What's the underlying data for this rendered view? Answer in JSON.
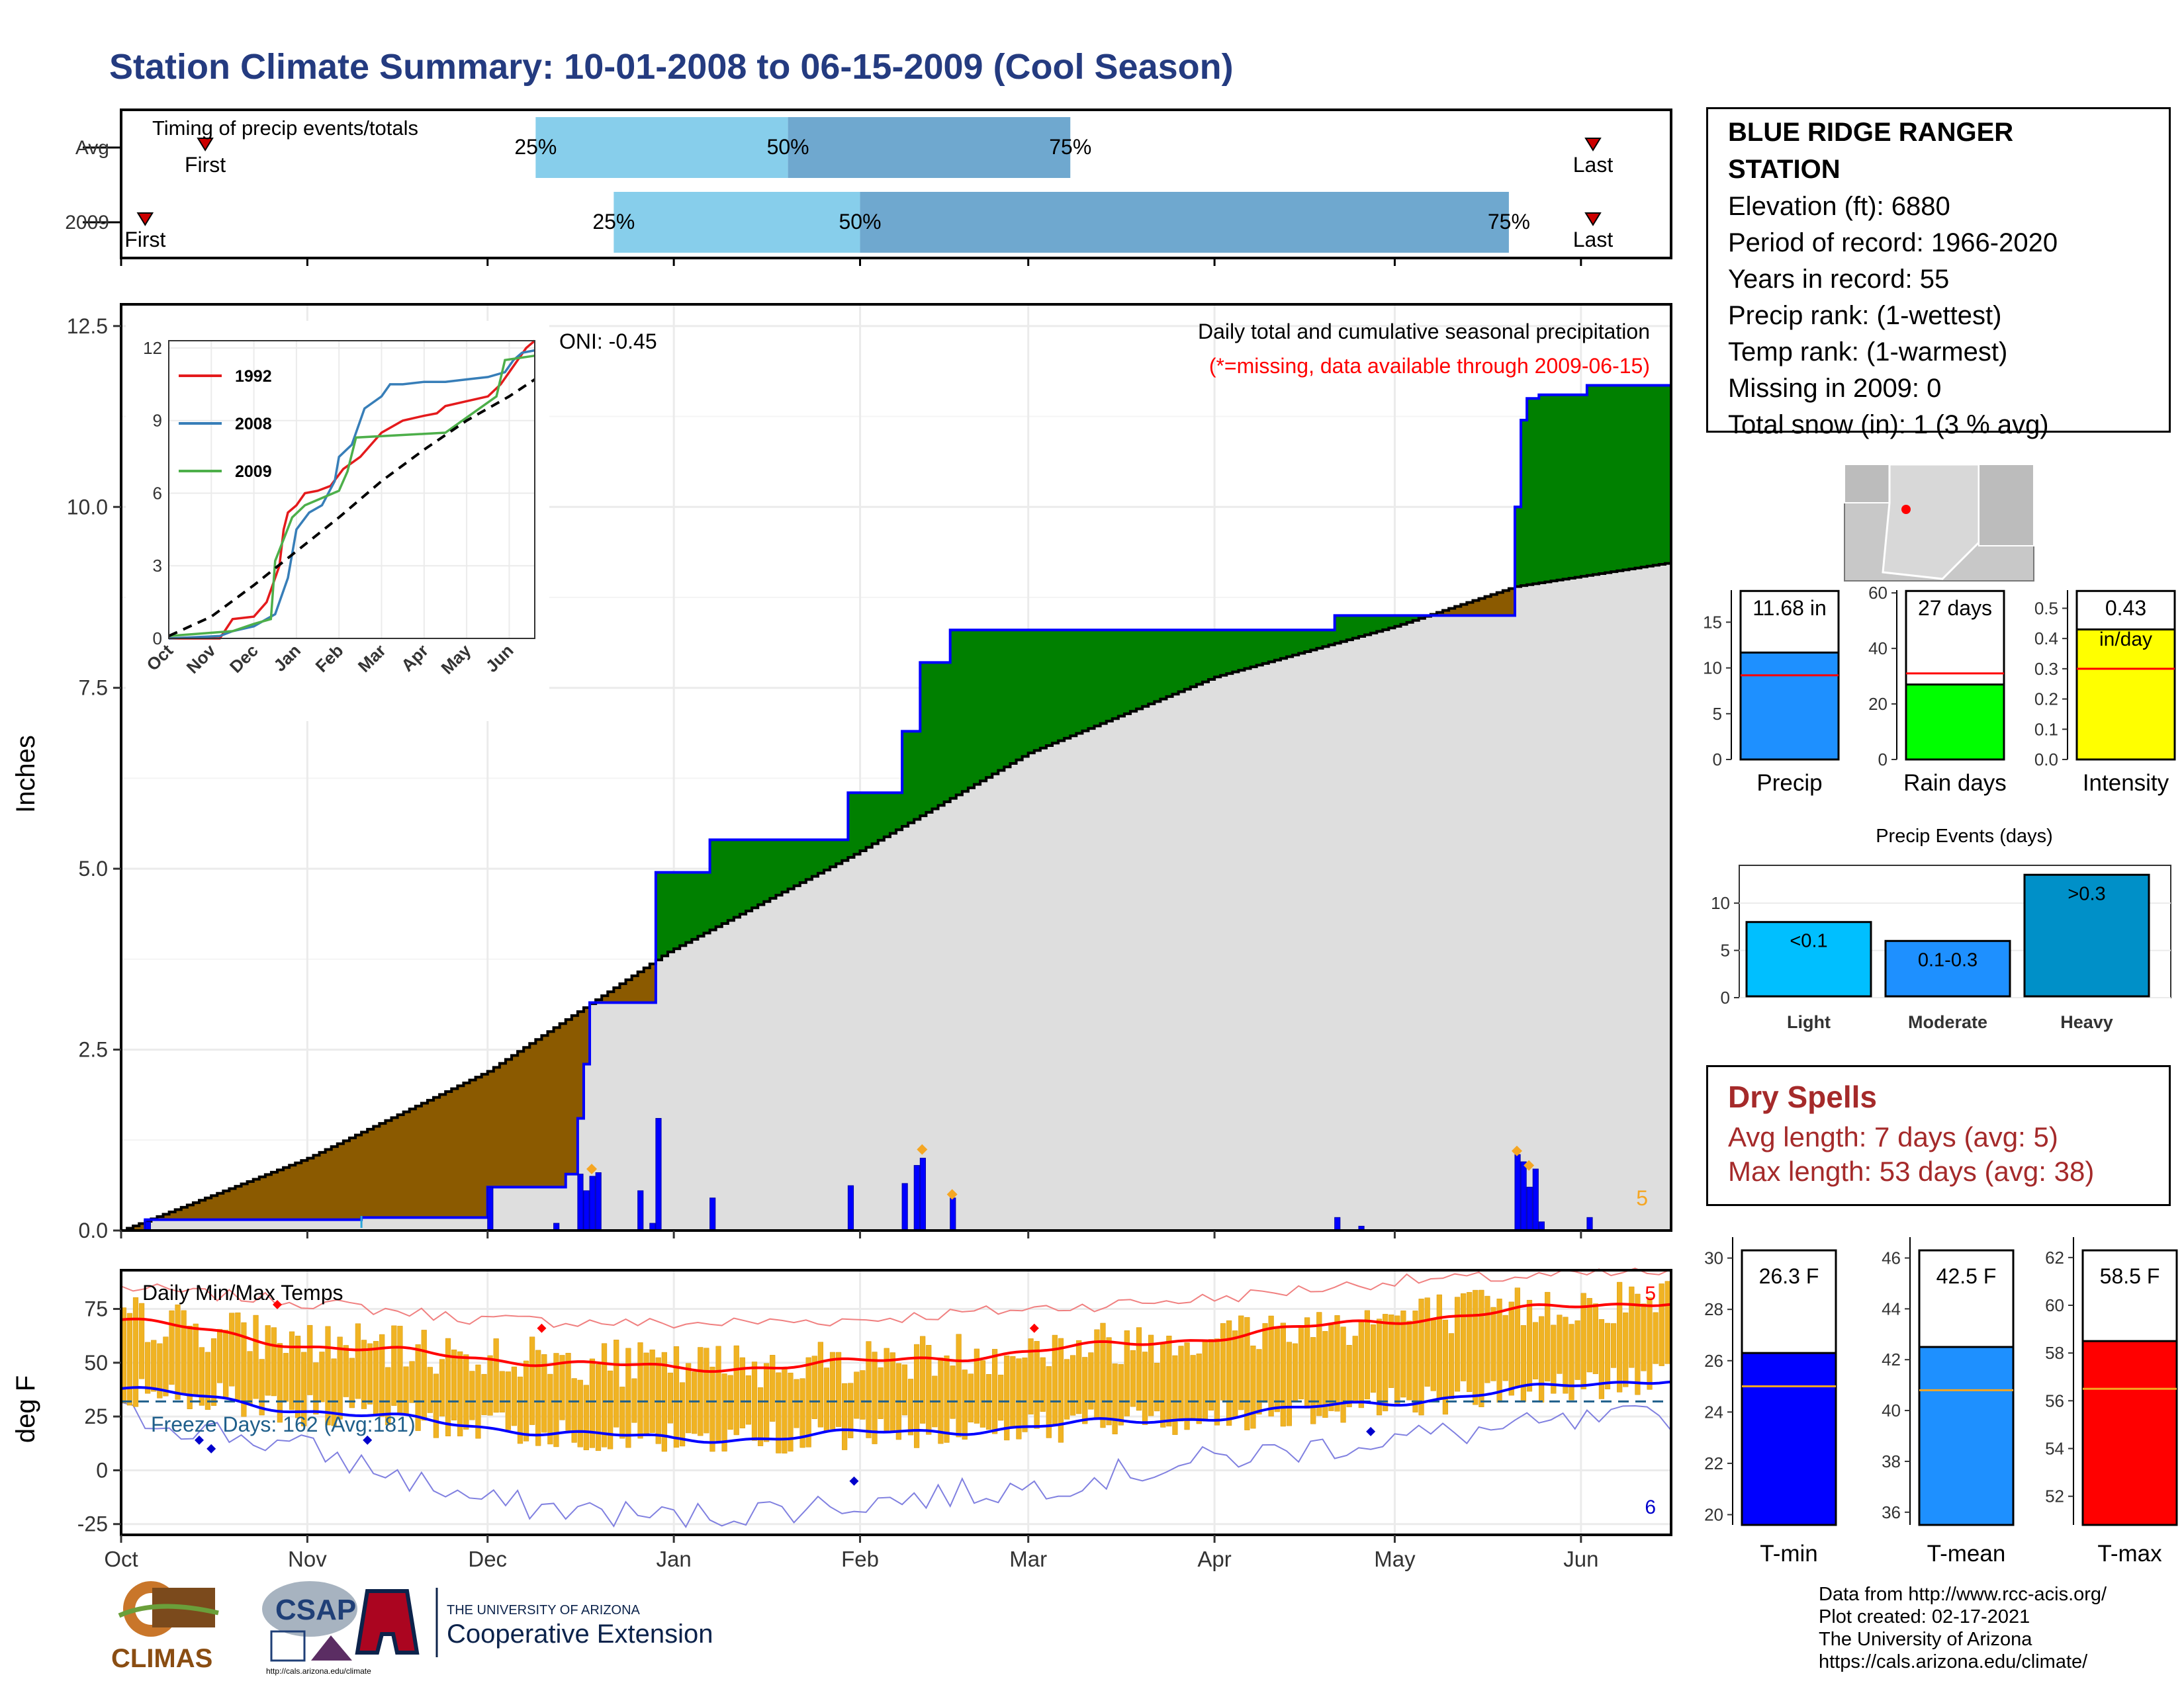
{
  "page_title": "Station Climate Summary: 10-01-2008 to 06-15-2009 (Cool Season)",
  "colors": {
    "title": "#243b80",
    "cum_precip_line": "#0000ff",
    "wet_fill": "#008000",
    "dry_fill": "#8b5a00",
    "avg_fill": "#dedede",
    "daily_precip": "#0000ff",
    "temp_bars": "#f0b323",
    "tmax_avg": "#ff0000",
    "tmin_avg": "#0000ff",
    "light_blue": "#87ceeb",
    "mid_blue": "#6fa8cf"
  },
  "timing_panel": {
    "label": "Timing of precip events/totals",
    "rows": [
      {
        "name": "Avg",
        "first": "First",
        "last": "Last",
        "first_date": "2008-10-15",
        "p25_date": "2008-12-09",
        "p50_date": "2009-01-20",
        "p75_date": "2009-03-08",
        "last_date": "2009-06-03"
      },
      {
        "name": "2009",
        "first": "First",
        "last": "Last",
        "first_date": "2008-10-05",
        "p25_date": "2008-12-22",
        "p50_date": "2009-02-01",
        "p75_date": "2009-05-20",
        "last_date": "2009-06-03"
      }
    ],
    "pct_labels": [
      "25%",
      "50%",
      "75%"
    ]
  },
  "station": {
    "name_line1": "BLUE RIDGE RANGER",
    "name_line2": "STATION",
    "lines": [
      "Elevation (ft): 6880",
      "Period of record: 1966-2020",
      "Years in record: 55",
      "Precip rank:  (1-wettest)",
      "Temp rank:  (1-warmest)",
      "Missing in 2009: 0",
      "Total snow (in): 1 (3 % avg)"
    ]
  },
  "main_precip": {
    "ylabel": "Inches",
    "oni": "ONI: -0.45",
    "annotation": "Daily total and cumulative seasonal precipitation",
    "missing_note": "(*=missing, data available through 2009-06-15)",
    "corner_count": "5",
    "yticks": [
      0.0,
      2.5,
      5.0,
      7.5,
      10.0,
      12.5
    ],
    "ytick_labels": [
      "0.0",
      "2.5",
      "5.0",
      "7.5",
      "10.0",
      "12.5"
    ],
    "ylim": [
      0,
      12.8
    ]
  },
  "inset": {
    "yticks": [
      0,
      3,
      6,
      9,
      12
    ],
    "xticks": [
      "Oct",
      "Nov",
      "Dec",
      "Jan",
      "Feb",
      "Mar",
      "Apr",
      "May",
      "Jun"
    ],
    "legend": [
      "1992",
      "2008",
      "2009"
    ],
    "legend_colors": [
      "#e41a1c",
      "#377eb8",
      "#4daf4a"
    ]
  },
  "temp_panel": {
    "ylabel": "deg F",
    "label": "Daily Min/Max Temps",
    "freeze": "Freeze Days: 162 (Avg:181)",
    "corner_max": "5",
    "corner_min": "6",
    "yticks": [
      -25,
      0,
      25,
      50,
      75
    ],
    "ytick_labels": [
      "-25",
      "0",
      "25",
      "50",
      "75"
    ],
    "ylim": [
      -30,
      93
    ]
  },
  "month_labels": [
    "Oct",
    "Nov",
    "Dec",
    "Jan",
    "Feb",
    "Mar",
    "Apr",
    "May",
    "Jun"
  ],
  "summary_bars": {
    "precip": {
      "label": "Precip",
      "value_text": "11.68 in",
      "value": 11.68,
      "avg": 9.2,
      "yticks": [
        0,
        5,
        10,
        15
      ],
      "ymax": 18.5
    },
    "rain_days": {
      "label": "Rain days",
      "value_text": "27 days",
      "value": 27,
      "avg": 31,
      "yticks": [
        0,
        20,
        40,
        60
      ],
      "ymax": 61
    },
    "intensity": {
      "label": "Intensity",
      "value_text": "0.43",
      "unit_text": "in/day",
      "value": 0.43,
      "avg": 0.3,
      "yticks": [
        0.0,
        0.1,
        0.2,
        0.3,
        0.4,
        0.5
      ],
      "ytick_labels": [
        "0.0",
        "0.1",
        "0.2",
        "0.3",
        "0.4",
        "0.5"
      ],
      "ymax": 0.56
    }
  },
  "precip_events": {
    "title": "Precip Events (days)",
    "categories": [
      "Light",
      "Moderate",
      "Heavy"
    ],
    "labels": [
      "<0.1",
      "0.1-0.3",
      ">0.3"
    ],
    "values": [
      8,
      6,
      13
    ],
    "yticks": [
      0,
      5,
      10
    ],
    "ymax": 14
  },
  "dry_spells": {
    "title": "Dry Spells",
    "avg_line": "Avg length: 7 days (avg: 5)",
    "max_line": "Max length: 53 days (avg: 38)"
  },
  "temp_bars": {
    "tmin": {
      "label": "T-min",
      "value_text": "26.3 F",
      "value": 26.3,
      "avg": 25.0,
      "yticks": [
        20,
        22,
        24,
        26,
        28,
        30
      ],
      "ymin": 19.6,
      "ymax": 30.3
    },
    "tmean": {
      "label": "T-mean",
      "value_text": "42.5 F",
      "value": 42.5,
      "avg": 40.8,
      "yticks": [
        36,
        38,
        40,
        42,
        44,
        46
      ],
      "ymin": 35.5,
      "ymax": 46.3
    },
    "tmax": {
      "label": "T-max",
      "value_text": "58.5 F",
      "value": 58.5,
      "avg": 56.5,
      "yticks": [
        52,
        54,
        56,
        58,
        60,
        62
      ],
      "ymin": 50.8,
      "ymax": 62.3
    }
  },
  "logos": {
    "climas": "CLIMAS",
    "csap": "CSAP",
    "csap_url": "http://cals.arizona.edu/climate",
    "ua_line1": "THE UNIVERSITY OF ARIZONA",
    "ua_line2": "Cooperative Extension"
  },
  "credits": [
    "Data from http://www.rcc-acis.org/",
    "Plot created: 02-17-2021",
    "The University of Arizona",
    "https://cals.arizona.edu/climate/"
  ],
  "chart_data": [
    {
      "type": "area",
      "title": "Daily total and cumulative seasonal precipitation",
      "ylabel": "Inches",
      "ylim": [
        0,
        12.8
      ],
      "cumulative_2009_steps": [
        {
          "date": "2008-10-01",
          "value": 0.0
        },
        {
          "date": "2008-10-05",
          "value": 0.15
        },
        {
          "date": "2008-11-10",
          "value": 0.18
        },
        {
          "date": "2008-12-01",
          "value": 0.6
        },
        {
          "date": "2008-12-14",
          "value": 0.78
        },
        {
          "date": "2008-12-16",
          "value": 1.55
        },
        {
          "date": "2008-12-17",
          "value": 2.3
        },
        {
          "date": "2008-12-18",
          "value": 3.15
        },
        {
          "date": "2008-12-29",
          "value": 4.95
        },
        {
          "date": "2009-01-07",
          "value": 5.4
        },
        {
          "date": "2009-01-30",
          "value": 6.05
        },
        {
          "date": "2009-02-08",
          "value": 6.9
        },
        {
          "date": "2009-02-11",
          "value": 7.85
        },
        {
          "date": "2009-02-16",
          "value": 8.3
        },
        {
          "date": "2009-04-21",
          "value": 8.5
        },
        {
          "date": "2009-05-21",
          "value": 10.0
        },
        {
          "date": "2009-05-22",
          "value": 11.2
        },
        {
          "date": "2009-05-23",
          "value": 11.5
        },
        {
          "date": "2009-05-25",
          "value": 11.55
        },
        {
          "date": "2009-06-02",
          "value": 11.68
        }
      ],
      "average_cumulative": [
        {
          "date": "2008-10-01",
          "value": 0.0
        },
        {
          "date": "2008-10-15",
          "value": 0.45
        },
        {
          "date": "2008-11-01",
          "value": 1.0
        },
        {
          "date": "2008-12-01",
          "value": 2.2
        },
        {
          "date": "2008-12-31",
          "value": 3.85
        },
        {
          "date": "2009-01-31",
          "value": 5.2
        },
        {
          "date": "2009-03-01",
          "value": 6.6
        },
        {
          "date": "2009-04-01",
          "value": 7.65
        },
        {
          "date": "2009-05-01",
          "value": 8.35
        },
        {
          "date": "2009-05-21",
          "value": 8.9
        },
        {
          "date": "2009-06-15",
          "value": 9.22
        }
      ],
      "daily_precip": [
        {
          "date": "2008-10-05",
          "value": 0.12
        },
        {
          "date": "2008-12-01",
          "value": 0.6
        },
        {
          "date": "2008-12-12",
          "value": 0.1
        },
        {
          "date": "2008-12-16",
          "value": 0.78
        },
        {
          "date": "2008-12-17",
          "value": 0.55
        },
        {
          "date": "2008-12-18",
          "value": 0.75
        },
        {
          "date": "2008-12-19",
          "value": 0.8
        },
        {
          "date": "2008-12-26",
          "value": 0.55
        },
        {
          "date": "2008-12-28",
          "value": 0.1
        },
        {
          "date": "2008-12-29",
          "value": 1.55
        },
        {
          "date": "2009-01-07",
          "value": 0.45
        },
        {
          "date": "2009-01-30",
          "value": 0.62
        },
        {
          "date": "2009-02-08",
          "value": 0.65
        },
        {
          "date": "2009-02-10",
          "value": 0.9
        },
        {
          "date": "2009-02-11",
          "value": 1.0
        },
        {
          "date": "2009-02-16",
          "value": 0.45
        },
        {
          "date": "2009-04-21",
          "value": 0.18
        },
        {
          "date": "2009-04-25",
          "value": 0.06
        },
        {
          "date": "2009-05-21",
          "value": 1.05
        },
        {
          "date": "2009-05-22",
          "value": 0.95
        },
        {
          "date": "2009-05-23",
          "value": 0.6
        },
        {
          "date": "2009-05-24",
          "value": 0.85
        },
        {
          "date": "2009-05-25",
          "value": 0.12
        },
        {
          "date": "2009-06-02",
          "value": 0.18
        }
      ],
      "extreme_markers": [
        {
          "date": "2008-12-18",
          "value": 0.85
        },
        {
          "date": "2009-02-11",
          "value": 1.12
        },
        {
          "date": "2009-02-16",
          "value": 0.5
        },
        {
          "date": "2009-05-21",
          "value": 1.1
        },
        {
          "date": "2009-05-23",
          "value": 0.9
        }
      ]
    },
    {
      "type": "line",
      "title": "inset cumulative",
      "ylim": [
        0,
        12
      ],
      "series": [
        {
          "name": "1992",
          "points": [
            [
              0,
              0
            ],
            [
              1.2,
              0
            ],
            [
              1.5,
              0.8
            ],
            [
              2,
              0.9
            ],
            [
              2.3,
              1.5
            ],
            [
              2.6,
              3
            ],
            [
              2.7,
              4.5
            ],
            [
              2.8,
              5.2
            ],
            [
              3.0,
              5.5
            ],
            [
              3.2,
              6.0
            ],
            [
              3.5,
              6.1
            ],
            [
              3.8,
              6.3
            ],
            [
              4.1,
              7.0
            ],
            [
              4.5,
              7.5
            ],
            [
              5.0,
              8.5
            ],
            [
              5.5,
              9.0
            ],
            [
              6.0,
              9.2
            ],
            [
              6.3,
              9.3
            ],
            [
              6.5,
              9.6
            ],
            [
              7.0,
              9.8
            ],
            [
              7.5,
              10.0
            ],
            [
              7.8,
              10.5
            ],
            [
              8.0,
              11.0
            ],
            [
              8.2,
              11.5
            ],
            [
              8.4,
              12.0
            ],
            [
              8.6,
              12.3
            ]
          ]
        },
        {
          "name": "2008",
          "points": [
            [
              0,
              0
            ],
            [
              1.2,
              0.1
            ],
            [
              1.5,
              0.3
            ],
            [
              2.0,
              0.5
            ],
            [
              2.5,
              1.0
            ],
            [
              2.8,
              2.5
            ],
            [
              3.0,
              4.5
            ],
            [
              3.3,
              5.2
            ],
            [
              3.6,
              5.5
            ],
            [
              3.9,
              6.5
            ],
            [
              4.0,
              7.5
            ],
            [
              4.3,
              8.0
            ],
            [
              4.6,
              9.5
            ],
            [
              5.0,
              10.0
            ],
            [
              5.2,
              10.5
            ],
            [
              5.5,
              10.5
            ],
            [
              6.0,
              10.6
            ],
            [
              6.5,
              10.6
            ],
            [
              7.0,
              10.7
            ],
            [
              7.5,
              10.8
            ],
            [
              7.9,
              11.0
            ],
            [
              8.1,
              11.5
            ],
            [
              8.3,
              11.8
            ],
            [
              8.6,
              11.9
            ]
          ]
        },
        {
          "name": "2009",
          "points": [
            [
              0,
              0.1
            ],
            [
              1.5,
              0.3
            ],
            [
              2.0,
              0.6
            ],
            [
              2.4,
              0.8
            ],
            [
              2.5,
              3.2
            ],
            [
              2.9,
              5.0
            ],
            [
              3.2,
              5.5
            ],
            [
              4.0,
              6.1
            ],
            [
              4.2,
              6.9
            ],
            [
              4.4,
              8.3
            ],
            [
              6.5,
              8.5
            ],
            [
              7.7,
              10.0
            ],
            [
              7.9,
              11.5
            ],
            [
              8.6,
              11.68
            ]
          ]
        },
        {
          "name": "average",
          "points": [
            [
              0,
              0.1
            ],
            [
              1,
              0.9
            ],
            [
              2,
              2.2
            ],
            [
              3,
              3.6
            ],
            [
              4,
              5.0
            ],
            [
              5,
              6.5
            ],
            [
              6,
              7.8
            ],
            [
              7,
              9.0
            ],
            [
              8,
              10.0
            ],
            [
              8.6,
              10.7
            ]
          ]
        }
      ],
      "xticks": [
        "Oct",
        "Nov",
        "Dec",
        "Jan",
        "Feb",
        "Mar",
        "Apr",
        "May",
        "Jun"
      ],
      "legend": [
        "1992",
        "2008",
        "2009"
      ]
    },
    {
      "type": "bar",
      "title": "Daily Min/Max Temps",
      "ylabel": "deg F",
      "ylim": [
        -30,
        93
      ],
      "avg_max": [
        {
          "date": "2008-10-01",
          "value": 70
        },
        {
          "date": "2008-11-01",
          "value": 58
        },
        {
          "date": "2008-12-01",
          "value": 52
        },
        {
          "date": "2009-01-01",
          "value": 47
        },
        {
          "date": "2009-02-01",
          "value": 50
        },
        {
          "date": "2009-03-01",
          "value": 55
        },
        {
          "date": "2009-04-01",
          "value": 62
        },
        {
          "date": "2009-05-01",
          "value": 70
        },
        {
          "date": "2009-06-15",
          "value": 79
        }
      ],
      "avg_min": [
        {
          "date": "2008-10-01",
          "value": 38
        },
        {
          "date": "2008-11-01",
          "value": 28
        },
        {
          "date": "2008-12-01",
          "value": 20
        },
        {
          "date": "2009-01-01",
          "value": 14
        },
        {
          "date": "2009-02-01",
          "value": 17
        },
        {
          "date": "2009-03-01",
          "value": 20
        },
        {
          "date": "2009-04-01",
          "value": 25
        },
        {
          "date": "2009-05-01",
          "value": 32
        },
        {
          "date": "2009-06-15",
          "value": 43
        }
      ],
      "record_max": [
        {
          "date": "2008-10-01",
          "value": 85
        },
        {
          "date": "2008-11-01",
          "value": 78
        },
        {
          "date": "2008-12-01",
          "value": 70
        },
        {
          "date": "2009-01-01",
          "value": 68
        },
        {
          "date": "2009-02-01",
          "value": 70
        },
        {
          "date": "2009-03-01",
          "value": 75
        },
        {
          "date": "2009-04-01",
          "value": 80
        },
        {
          "date": "2009-05-01",
          "value": 88
        },
        {
          "date": "2009-06-15",
          "value": 92
        }
      ],
      "record_min": [
        {
          "date": "2008-10-01",
          "value": 26
        },
        {
          "date": "2008-11-01",
          "value": 10
        },
        {
          "date": "2008-12-01",
          "value": -15
        },
        {
          "date": "2009-01-01",
          "value": -22
        },
        {
          "date": "2009-02-01",
          "value": -15
        },
        {
          "date": "2009-03-01",
          "value": -8
        },
        {
          "date": "2009-04-01",
          "value": 5
        },
        {
          "date": "2009-05-01",
          "value": 15
        },
        {
          "date": "2009-06-15",
          "value": 25
        }
      ],
      "freeze_line": 32
    },
    {
      "type": "bar",
      "title": "Precip Events (days)",
      "categories": [
        "Light",
        "Moderate",
        "Heavy"
      ],
      "values": [
        8,
        6,
        13
      ]
    }
  ]
}
